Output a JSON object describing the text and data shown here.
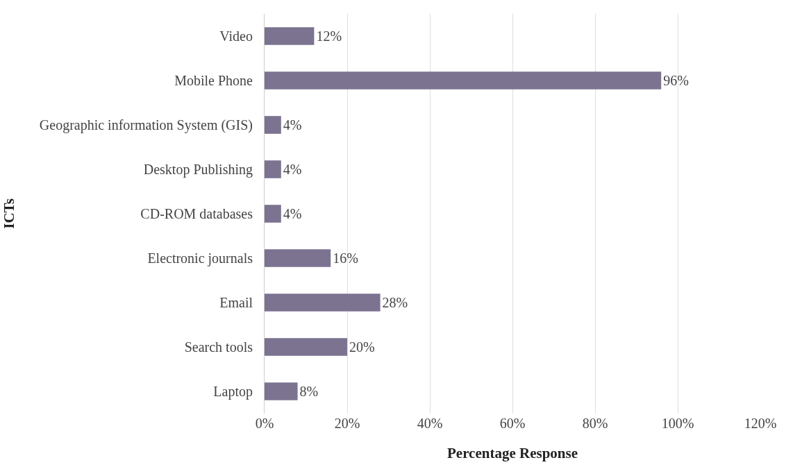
{
  "chart_data": {
    "type": "bar",
    "orientation": "horizontal",
    "xlabel": "Percentage Response",
    "ylabel": "ICTs",
    "categories": [
      "Video",
      "Mobile Phone",
      "Geographic information System (GIS)",
      "Desktop Publishing",
      "CD-ROM databases",
      "Electronic journals",
      "Email",
      "Search tools",
      "Laptop"
    ],
    "values": [
      12,
      96,
      4,
      4,
      4,
      16,
      28,
      20,
      8
    ],
    "value_labels": [
      "12%",
      "96%",
      "4%",
      "4%",
      "4%",
      "16%",
      "28%",
      "20%",
      "8%"
    ],
    "color": "#7b7390",
    "xlim": [
      0,
      120
    ],
    "xticks": [
      {
        "value": 0,
        "label": "0%"
      },
      {
        "value": 20,
        "label": "20%"
      },
      {
        "value": 40,
        "label": "40%"
      },
      {
        "value": 60,
        "label": "60%"
      },
      {
        "value": 80,
        "label": "80%"
      },
      {
        "value": 100,
        "label": "100%"
      },
      {
        "value": 120,
        "label": "120%"
      }
    ],
    "grid": "x"
  }
}
